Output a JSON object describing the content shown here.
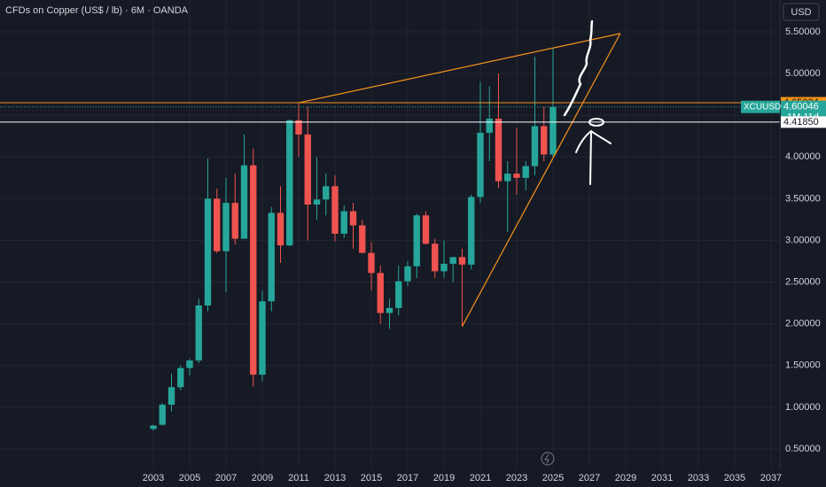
{
  "chart_data": {
    "type": "candlestick",
    "title": "CFDs on Copper (US$ / lb) · 6M · OANDA",
    "currency": "USD",
    "up_color": "#26a69a",
    "down_color": "#ef5350",
    "x": [
      2003,
      2003.5,
      2004,
      2004.5,
      2005,
      2005.5,
      2006,
      2006.5,
      2007,
      2007.5,
      2008,
      2008.5,
      2009,
      2009.5,
      2010,
      2010.5,
      2011,
      2011.5,
      2012,
      2012.5,
      2013,
      2013.5,
      2014,
      2014.5,
      2015,
      2015.5,
      2016,
      2016.5,
      2017,
      2017.5,
      2018,
      2018.5,
      2019,
      2019.5,
      2020,
      2020.5,
      2021,
      2021.5,
      2022,
      2022.5,
      2023,
      2023.5,
      2024,
      2024.5,
      2025
    ],
    "open": [
      0.74,
      0.79,
      1.03,
      1.24,
      1.47,
      1.56,
      2.22,
      3.5,
      2.87,
      3.45,
      3.02,
      3.9,
      1.39,
      2.27,
      3.33,
      2.94,
      4.44,
      4.27,
      3.43,
      3.49,
      3.65,
      3.08,
      3.35,
      3.18,
      2.85,
      2.61,
      2.13,
      2.19,
      2.51,
      2.69,
      3.3,
      2.96,
      2.63,
      2.72,
      2.8,
      2.71,
      3.52,
      4.29,
      4.46,
      3.71,
      3.8,
      3.75,
      3.89,
      4.37,
      4.03
    ],
    "high": [
      0.79,
      1.05,
      1.4,
      1.5,
      1.58,
      2.3,
      3.98,
      3.62,
      3.75,
      3.8,
      4.27,
      4.1,
      2.4,
      3.4,
      3.65,
      4.45,
      4.65,
      4.6,
      4.0,
      3.8,
      3.78,
      3.42,
      3.45,
      3.25,
      2.98,
      2.7,
      2.3,
      2.7,
      2.75,
      3.32,
      3.35,
      3.02,
      3.0,
      2.8,
      2.9,
      3.55,
      4.9,
      4.85,
      5.0,
      3.95,
      4.35,
      3.95,
      5.2,
      4.6,
      5.3
    ],
    "low": [
      0.72,
      0.78,
      0.95,
      1.2,
      1.38,
      1.53,
      2.15,
      2.85,
      2.38,
      2.95,
      3.02,
      1.25,
      1.31,
      2.15,
      2.73,
      2.93,
      4.0,
      3.0,
      3.25,
      3.3,
      2.99,
      3.03,
      2.9,
      2.85,
      2.4,
      2.0,
      1.94,
      2.1,
      2.45,
      2.55,
      2.95,
      2.55,
      2.55,
      2.5,
      1.97,
      2.65,
      3.45,
      3.95,
      3.63,
      3.1,
      3.55,
      3.6,
      3.78,
      3.95,
      4.0
    ],
    "close": [
      0.78,
      1.03,
      1.24,
      1.47,
      1.56,
      2.22,
      3.5,
      2.87,
      3.45,
      3.02,
      3.9,
      1.39,
      2.27,
      3.33,
      2.94,
      4.44,
      4.27,
      3.43,
      3.49,
      3.65,
      3.08,
      3.35,
      3.18,
      2.85,
      2.61,
      2.13,
      2.19,
      2.51,
      2.69,
      3.3,
      2.96,
      2.63,
      2.72,
      2.8,
      2.71,
      3.52,
      4.29,
      4.46,
      3.71,
      3.8,
      3.75,
      3.89,
      4.37,
      4.03,
      4.6
    ],
    "xlim": [
      1994.56,
      2037.49
    ],
    "ylim": [
      0.256,
      5.882
    ],
    "xticks": [
      2003,
      2005,
      2007,
      2009,
      2011,
      2013,
      2015,
      2017,
      2019,
      2021,
      2023,
      2025,
      2027,
      2029,
      2031,
      2033,
      2035,
      2037
    ],
    "yticks": [
      {
        "value": 0.5,
        "label": "0.50000"
      },
      {
        "value": 1,
        "label": "1.00000"
      },
      {
        "value": 1.5,
        "label": "1.50000"
      },
      {
        "value": 2,
        "label": "2.00000"
      },
      {
        "value": 2.5,
        "label": "2.50000"
      },
      {
        "value": 3,
        "label": "3.00000"
      },
      {
        "value": 3.5,
        "label": "3.50000"
      },
      {
        "value": 4,
        "label": "4.00000"
      },
      {
        "value": 4.5,
        "label": "4.50000"
      },
      {
        "value": 5,
        "label": "5.00000"
      },
      {
        "value": 5.5,
        "label": "5.50000"
      }
    ],
    "grid": true,
    "price_lines": [
      {
        "value": 4.65034,
        "label": "4.65034",
        "color": "#f7931a",
        "style": "solid"
      },
      {
        "value": 4.60046,
        "label": "4.60046",
        "name": "XCUUSD",
        "countdown": "1M 11d",
        "color": "#26a69a",
        "style": "dotted"
      },
      {
        "value": 4.4185,
        "label": "4.41850",
        "color": "#ffffff",
        "style": "solid"
      }
    ],
    "trendlines": [
      {
        "color": "#f7931a",
        "x": [
          2011,
          2028.7
        ],
        "y": [
          4.65,
          5.48
        ]
      },
      {
        "color": "#f7931a",
        "x": [
          2020,
          2028.7
        ],
        "y": [
          1.97,
          5.48
        ]
      }
    ]
  }
}
